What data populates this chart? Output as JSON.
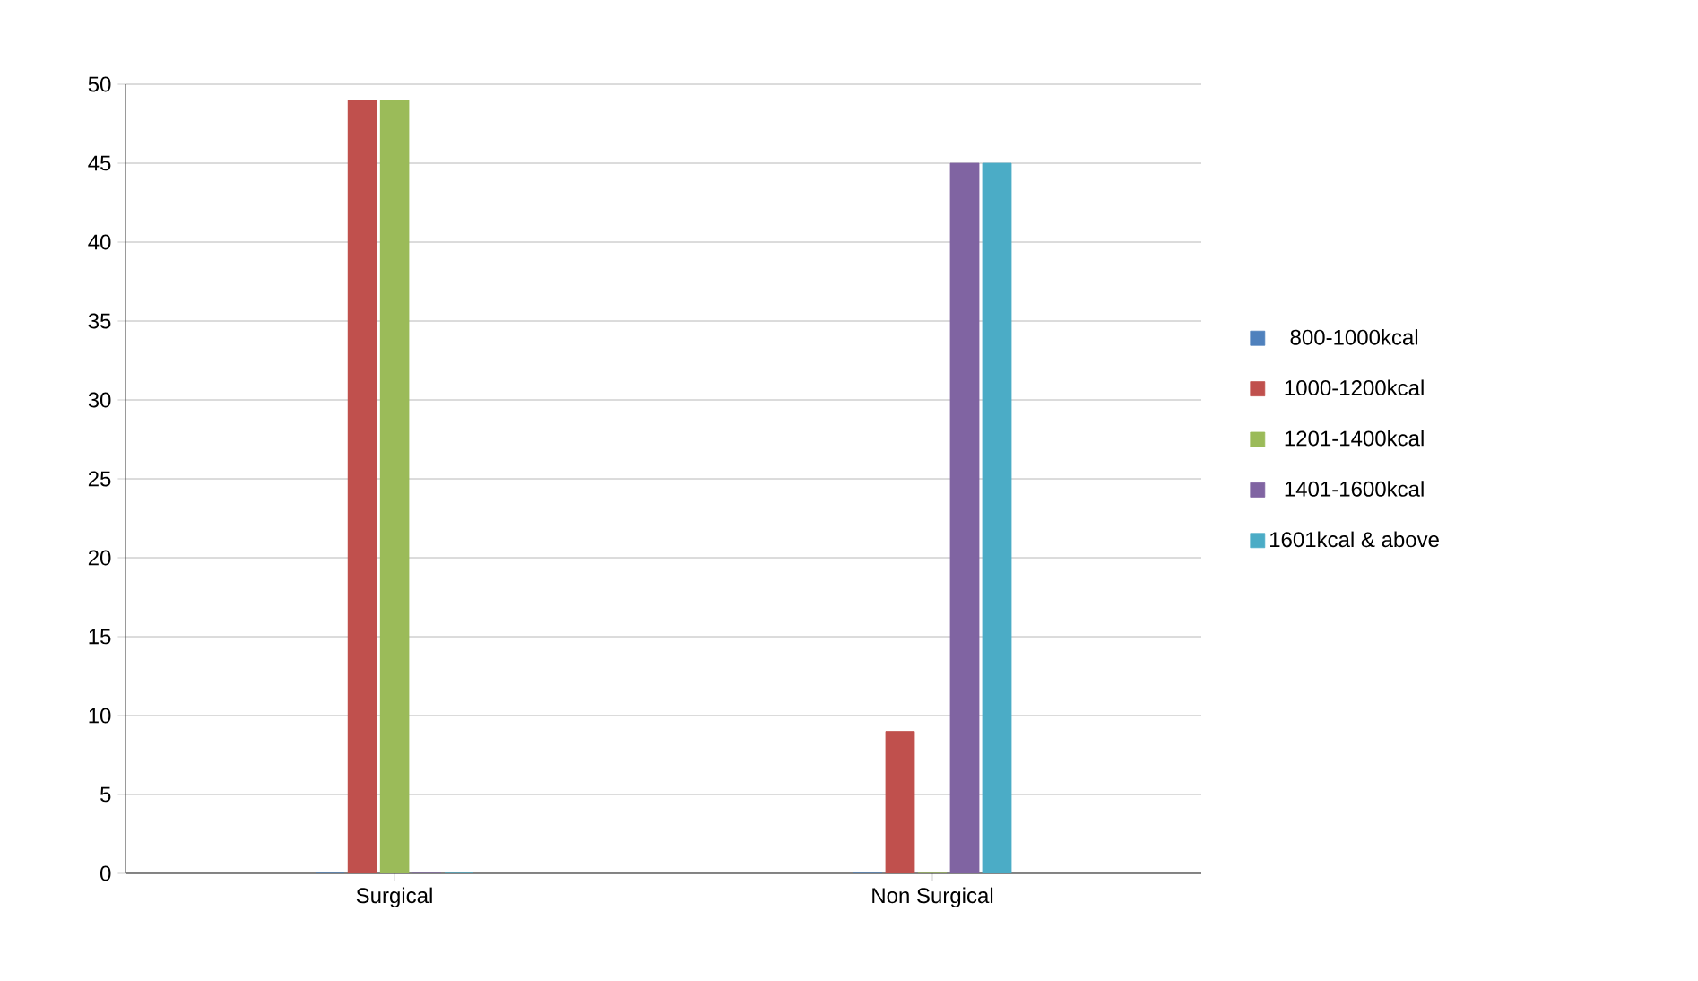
{
  "chart_data": {
    "type": "bar",
    "categories": [
      "Surgical",
      "Non Surgical"
    ],
    "series": [
      {
        "name": "800-1000kcal",
        "color": "#4f81bd",
        "values": [
          0,
          0
        ]
      },
      {
        "name": "1000-1200kcal",
        "color": "#c0504d",
        "values": [
          49,
          9
        ]
      },
      {
        "name": "1201-1400kcal",
        "color": "#9bbb59",
        "values": [
          49,
          0
        ]
      },
      {
        "name": "1401-1600kcal",
        "color": "#8064a2",
        "values": [
          0,
          45
        ]
      },
      {
        "name": "1601kcal & above",
        "color": "#4bacc6",
        "values": [
          0,
          45
        ]
      }
    ],
    "ylim": [
      0,
      50
    ],
    "yticks": [
      0,
      5,
      10,
      15,
      20,
      25,
      30,
      35,
      40,
      45,
      50
    ],
    "grid": "y",
    "legend": "right"
  }
}
